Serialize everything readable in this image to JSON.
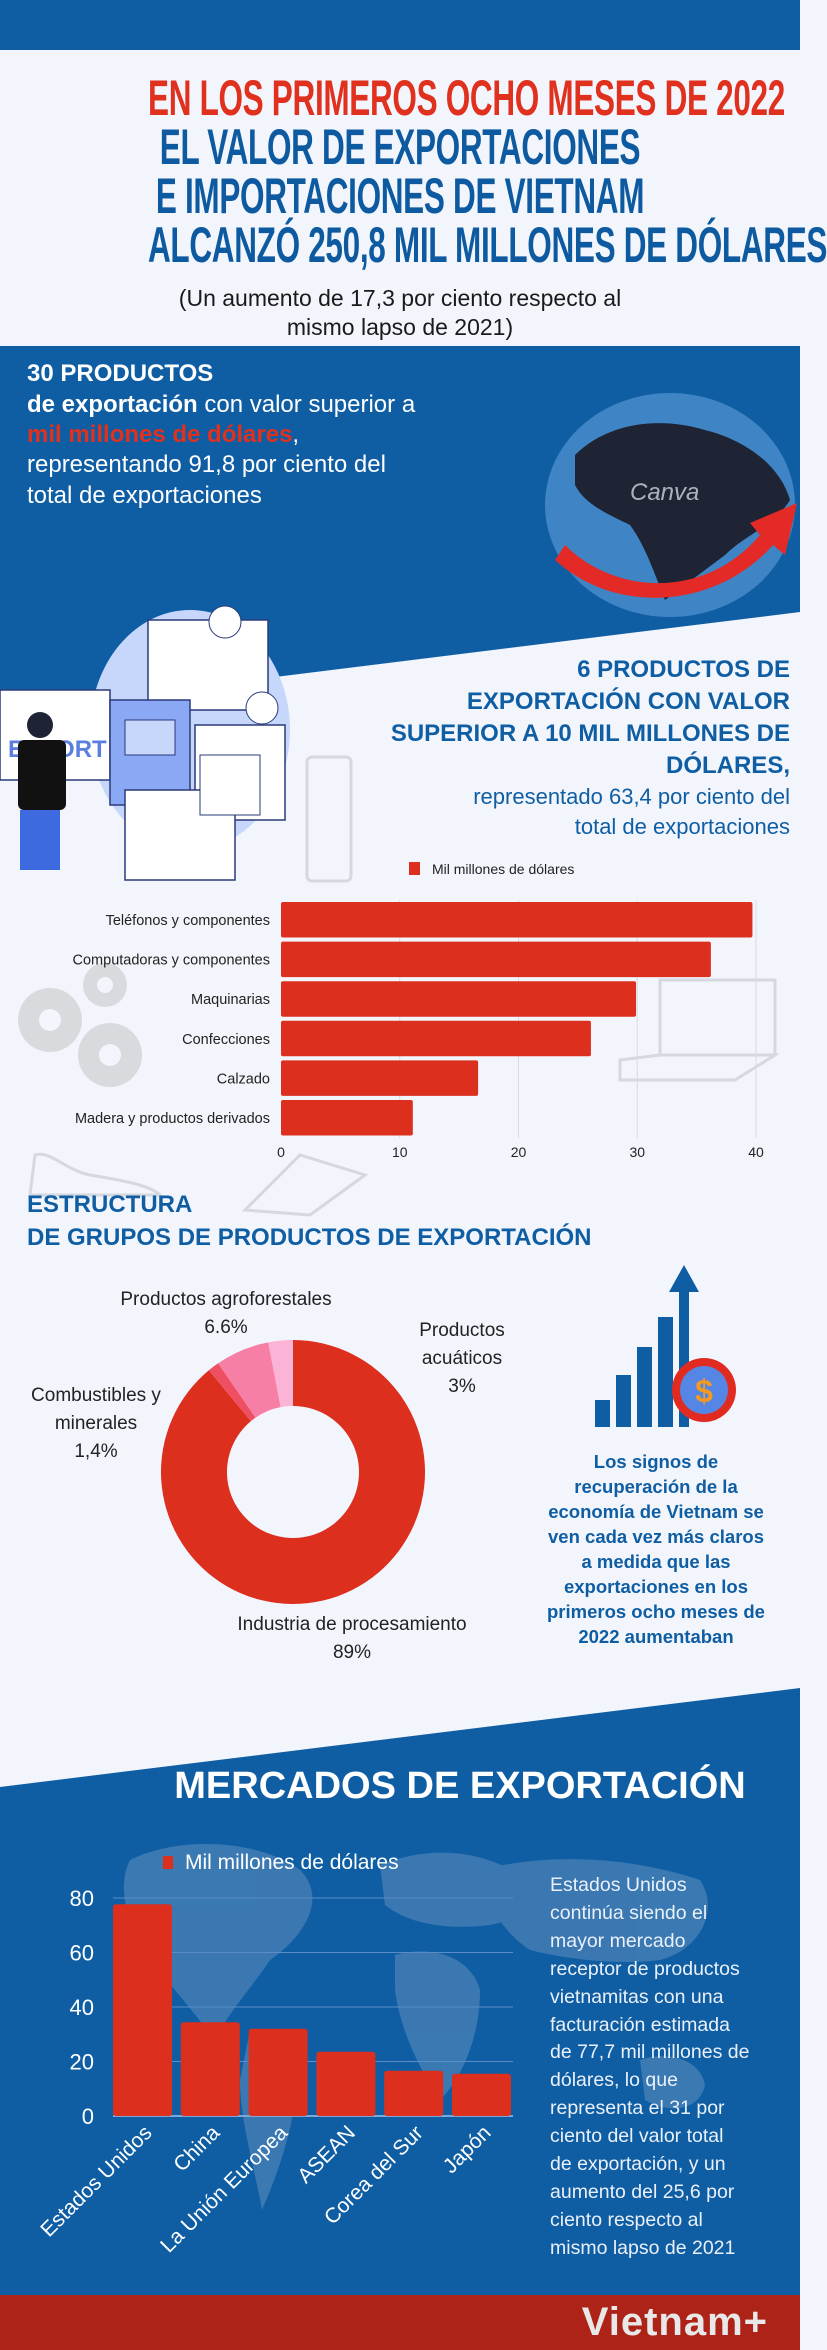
{
  "colors": {
    "blue": "#0f5ea3",
    "red": "#dc2f1e",
    "title_red": "#e0301e",
    "background": "#f3f5fc",
    "footer_red": "#ae2318"
  },
  "header": {
    "title_line1": "EN LOS PRIMEROS OCHO MESES DE 2022",
    "title_line2": "EL VALOR DE EXPORTACIONES",
    "title_line3": "E IMPORTACIONES DE VIETNAM",
    "title_line4": "ALCANZÓ 250,8 MIL MILLONES DE DÓLARES",
    "subtitle_line1": "(Un aumento de 17,3 por ciento respecto al",
    "subtitle_line2": "mismo lapso de 2021)"
  },
  "intro": {
    "heading": "30 PRODUCTOS",
    "line2_bold": "de exportación",
    "line2_rest": " con valor superior a",
    "line3_red": "mil millones de dólares",
    "line3_rest": ",",
    "line4": "representando 91,8 por ciento del",
    "line5": "total de exportaciones",
    "globe_watermark": "Canva",
    "illustration_label": "EXPORT"
  },
  "top_products": {
    "heading_lines": [
      "6 PRODUCTOS DE",
      "EXPORTACIÓN CON VALOR",
      "SUPERIOR A 10 MIL MILLONES DE",
      "DÓLARES,"
    ],
    "sub_lines": [
      "representado 63,4 por ciento del",
      "total de exportaciones"
    ]
  },
  "structure": {
    "heading_line1": "ESTRUCTURA",
    "heading_line2": "DE GRUPOS DE PRODUCTOS DE EXPORTACIÓN"
  },
  "recovery": {
    "lines": [
      "Los signos de",
      "recuperación de la",
      "economía de Vietnam se",
      "ven cada vez más claros",
      "a medida que las",
      "exportaciones en los",
      "primeros ocho meses de",
      "2022 aumentaban"
    ]
  },
  "markets": {
    "heading": "MERCADOS DE EXPORTACIÓN",
    "note_lines": [
      "Estados Unidos",
      "continúa siendo el",
      "mayor mercado",
      "receptor de productos",
      "vietnamitas con una",
      "facturación estimada",
      "de 77,7 mil millones de",
      "dólares, lo que",
      "representa el 31 por",
      "ciento del valor total",
      "de exportación, y un",
      "aumento del 25,6 por",
      "ciento respecto al",
      "mismo lapso de 2021"
    ]
  },
  "footer": {
    "logo": "Vietnam+"
  },
  "chart_data": [
    {
      "type": "bar",
      "orientation": "horizontal",
      "categories": [
        "Teléfonos y componentes",
        "Computadoras y componentes",
        "Maquinarias",
        "Confecciones",
        "Calzado",
        "Madera y productos derivados"
      ],
      "series": [
        {
          "name": "Mil millones de dólares",
          "values": [
            39.7,
            36.2,
            29.9,
            26.1,
            16.6,
            11.1
          ],
          "color": "#dc2f1e"
        }
      ],
      "xlim": [
        0,
        40
      ],
      "xticks": [
        "0",
        "10",
        "20",
        "30",
        "40"
      ],
      "grid": true,
      "legend": "top"
    },
    {
      "type": "pie",
      "donut": true,
      "slices": [
        {
          "label": "Industria de procesamiento",
          "value": 89,
          "value_label": "89%",
          "color": "#dc2f1e"
        },
        {
          "label": "Combustibles y minerales",
          "value": 1.4,
          "value_label": "1,4%",
          "color": "#ef4f62"
        },
        {
          "label": "Productos agroforestales",
          "value": 6.6,
          "value_label": "6.6%",
          "color": "#f77fa6"
        },
        {
          "label": "Productos acuáticos",
          "value": 3,
          "value_label": "3%",
          "color": "#fbb3d6"
        }
      ]
    },
    {
      "type": "bar",
      "orientation": "vertical",
      "categories": [
        "Estados Unidos",
        "China",
        "La Unión Europea",
        "ASEAN",
        "Corea del Sur",
        "Japón"
      ],
      "series": [
        {
          "name": "Mil millones de dólares",
          "values": [
            77.7,
            34.4,
            32.0,
            23.6,
            16.6,
            15.5
          ],
          "color": "#dc2f1e"
        }
      ],
      "ylim": [
        0,
        80
      ],
      "yticks": [
        "0",
        "20",
        "40",
        "60",
        "80"
      ],
      "grid": true,
      "legend": "top"
    }
  ]
}
